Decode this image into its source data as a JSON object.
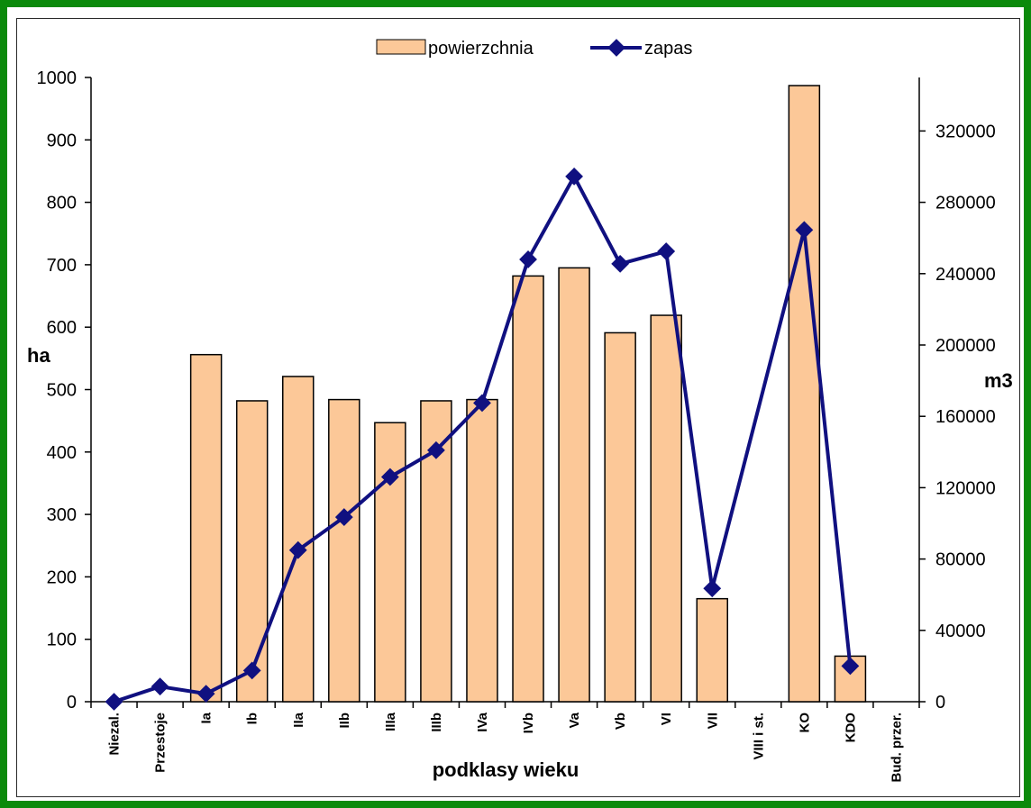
{
  "chart_data": {
    "type": "bar",
    "title": "",
    "categories": [
      "Niezal.",
      "Przestoje",
      "Ia",
      "Ib",
      "IIa",
      "IIb",
      "IIIa",
      "IIIb",
      "IVa",
      "IVb",
      "Va",
      "Vb",
      "VI",
      "VII",
      "VIII i st.",
      "KO",
      "KDO",
      "Bud. przer."
    ],
    "xlabel": "podklasy wieku",
    "ylabel": "ha",
    "y2label": "m3",
    "ylim": [
      0,
      1000
    ],
    "y2lim": [
      0,
      350000
    ],
    "yticks": [
      "0",
      "100",
      "200",
      "300",
      "400",
      "500",
      "600",
      "700",
      "800",
      "900",
      "1000"
    ],
    "y2ticks": [
      "0",
      "40000",
      "80000",
      "120000",
      "160000",
      "200000",
      "240000",
      "280000",
      "320000"
    ],
    "legend_position": "top-center",
    "grid": false,
    "series": [
      {
        "name": "powierzchnia",
        "type": "bar",
        "axis": "left",
        "color": "#fcc898",
        "values": [
          0,
          0,
          556,
          482,
          521,
          484,
          447,
          482,
          484,
          682,
          695,
          591,
          619,
          165,
          0,
          987,
          73,
          0
        ]
      },
      {
        "name": "zapas",
        "type": "line",
        "axis": "right",
        "color": "#101080",
        "values": [
          0,
          8500,
          4500,
          17500,
          85000,
          103500,
          126000,
          141000,
          167500,
          248000,
          294500,
          245500,
          252500,
          63500,
          null,
          264500,
          20000,
          null
        ]
      }
    ]
  }
}
